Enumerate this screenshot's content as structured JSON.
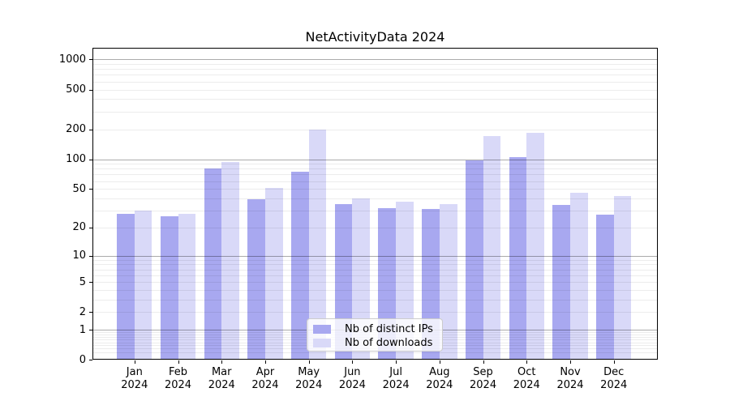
{
  "chart_data": {
    "type": "bar",
    "title": "NetActivityData 2024",
    "categories": [
      "Jan 2024",
      "Feb 2024",
      "Mar 2024",
      "Apr 2024",
      "May 2024",
      "Jun 2024",
      "Jul 2024",
      "Aug 2024",
      "Sep 2024",
      "Oct 2024",
      "Nov 2024",
      "Dec 2024"
    ],
    "series": [
      {
        "name": "Nb of distinct IPs",
        "color": "#a8a8f0",
        "values": [
          28,
          26,
          81,
          39,
          75,
          35,
          32,
          31,
          98,
          104,
          34,
          27
        ]
      },
      {
        "name": "Nb of downloads",
        "color": "#d9d9f8",
        "values": [
          30,
          28,
          94,
          51,
          198,
          40,
          37,
          35,
          171,
          183,
          46,
          42
        ]
      }
    ],
    "xlabel": "",
    "ylabel": "",
    "yscale": "log1p",
    "y_ticks": [
      0,
      1,
      2,
      5,
      10,
      20,
      50,
      100,
      200,
      500,
      1000
    ],
    "ylim": [
      0,
      1300
    ],
    "grid": true,
    "legend_position": "lower center"
  },
  "colors": {
    "background": "#ffffff",
    "major_grid": "#adadad",
    "minor_grid": "#ececec",
    "axis": "#000000",
    "text": "#000000",
    "legend_border": "#cccccc"
  }
}
